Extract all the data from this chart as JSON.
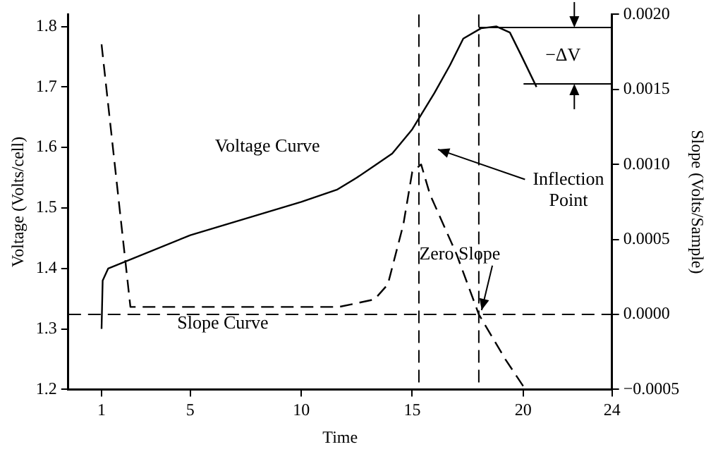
{
  "chart_data": {
    "type": "line",
    "xlabel": "Time",
    "ylabel": "Voltage (Volts/cell)",
    "y2label": "Slope (Volts/Sample)",
    "xlim": [
      -0.5,
      24
    ],
    "xticks": [
      1,
      5,
      10,
      15,
      20,
      24
    ],
    "ylim": [
      1.2,
      1.82
    ],
    "yticks": [
      1.2,
      1.3,
      1.4,
      1.5,
      1.6,
      1.7,
      1.8
    ],
    "y2lim": [
      -0.0005,
      0.002
    ],
    "y2ticks": [
      {
        "value": -0.0005,
        "label": "−0.0005"
      },
      {
        "value": 0,
        "label": "0.0000"
      },
      {
        "value": 0.0005,
        "label": "0.0005"
      },
      {
        "value": 0.001,
        "label": "0.0010"
      },
      {
        "value": 0.0015,
        "label": "0.0015"
      },
      {
        "value": 0.002,
        "label": "0.0020"
      }
    ],
    "grid": false,
    "legend": false,
    "marker": "none",
    "series": [
      {
        "name": "Voltage Curve",
        "color": "#000000",
        "line_style": "solid",
        "x": [
          1,
          1.05,
          1.3,
          5,
          10,
          11.6,
          12.5,
          13.3,
          14.1,
          15,
          16,
          16.7,
          17.3,
          18.1,
          18.8,
          19.4,
          19.9,
          20.6
        ],
        "values": [
          1.3,
          1.38,
          1.4,
          1.455,
          1.51,
          1.53,
          1.55,
          1.57,
          1.59,
          1.63,
          1.69,
          1.736,
          1.78,
          1.797,
          1.8,
          1.79,
          1.753,
          1.7
        ]
      },
      {
        "name": "Slope Curve",
        "color": "#000000",
        "line_style": "dashed",
        "axis": "y2",
        "x": [
          1,
          2.3,
          2.8,
          5,
          11.7,
          13.3,
          13.9,
          14.6,
          15,
          15.4,
          15.8,
          17,
          18,
          19.2,
          20.1
        ],
        "values": [
          0.0018,
          5e-05,
          5e-05,
          5e-05,
          5e-05,
          0.0001,
          0.0002,
          0.0006,
          0.00095,
          0.001,
          0.0008,
          0.0004,
          0,
          -0.0003,
          -0.0005
        ]
      }
    ],
    "ref_lines": [
      {
        "axis": "x",
        "value": 15.3,
        "line_style": "dashed"
      },
      {
        "axis": "x",
        "value": 18,
        "line_style": "dashed"
      },
      {
        "axis": "y2",
        "value": 0,
        "line_style": "dashed"
      }
    ],
    "annotations": [
      "Inflection Point",
      "Zero Slope",
      "−ΔV"
    ]
  }
}
